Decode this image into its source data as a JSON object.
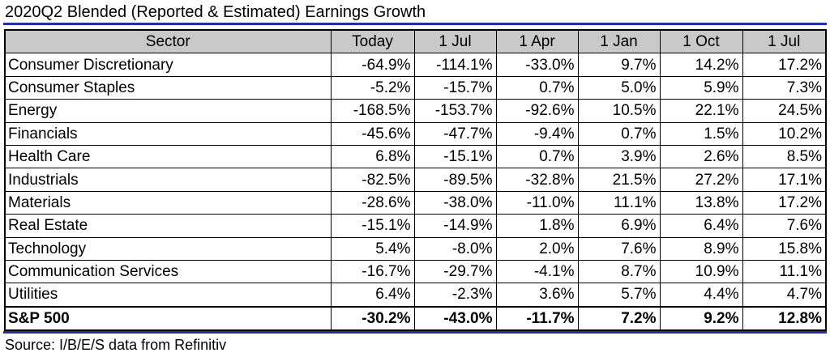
{
  "chart_data": {
    "type": "table",
    "title": "2020Q2 Blended (Reported & Estimated) Earnings Growth",
    "columns": [
      "Sector",
      "Today",
      "1 Jul",
      "1 Apr",
      "1 Jan",
      "1 Oct",
      "1 Jul"
    ],
    "rows": [
      {
        "sector": "Consumer Discretionary",
        "values": [
          "-64.9%",
          "-114.1%",
          "-33.0%",
          "9.7%",
          "14.2%",
          "17.2%"
        ]
      },
      {
        "sector": "Consumer Staples",
        "values": [
          "-5.2%",
          "-15.7%",
          "0.7%",
          "5.0%",
          "5.9%",
          "7.3%"
        ]
      },
      {
        "sector": "Energy",
        "values": [
          "-168.5%",
          "-153.7%",
          "-92.6%",
          "10.5%",
          "22.1%",
          "24.5%"
        ]
      },
      {
        "sector": "Financials",
        "values": [
          "-45.6%",
          "-47.7%",
          "-9.4%",
          "0.7%",
          "1.5%",
          "10.2%"
        ]
      },
      {
        "sector": "Health Care",
        "values": [
          "6.8%",
          "-15.1%",
          "0.7%",
          "3.9%",
          "2.6%",
          "8.5%"
        ]
      },
      {
        "sector": "Industrials",
        "values": [
          "-82.5%",
          "-89.5%",
          "-32.8%",
          "21.5%",
          "27.2%",
          "17.1%"
        ]
      },
      {
        "sector": "Materials",
        "values": [
          "-28.6%",
          "-38.0%",
          "-11.0%",
          "11.1%",
          "13.8%",
          "17.2%"
        ]
      },
      {
        "sector": "Real Estate",
        "values": [
          "-15.1%",
          "-14.9%",
          "1.8%",
          "6.9%",
          "6.4%",
          "7.6%"
        ]
      },
      {
        "sector": "Technology",
        "values": [
          "5.4%",
          "-8.0%",
          "2.0%",
          "7.6%",
          "8.9%",
          "15.8%"
        ]
      },
      {
        "sector": "Communication Services",
        "values": [
          "-16.7%",
          "-29.7%",
          "-4.1%",
          "8.7%",
          "10.9%",
          "11.1%"
        ]
      },
      {
        "sector": "Utilities",
        "values": [
          "6.4%",
          "-2.3%",
          "3.6%",
          "5.7%",
          "4.4%",
          "4.7%"
        ]
      }
    ],
    "total": {
      "sector": "S&P 500",
      "values": [
        "-30.2%",
        "-43.0%",
        "-11.7%",
        "7.2%",
        "9.2%",
        "12.8%"
      ]
    },
    "source": "Source: I/B/E/S data from Refinitiv"
  },
  "colors": {
    "rule": "#1f2fb5",
    "header_bg": "#c9c9c9"
  }
}
